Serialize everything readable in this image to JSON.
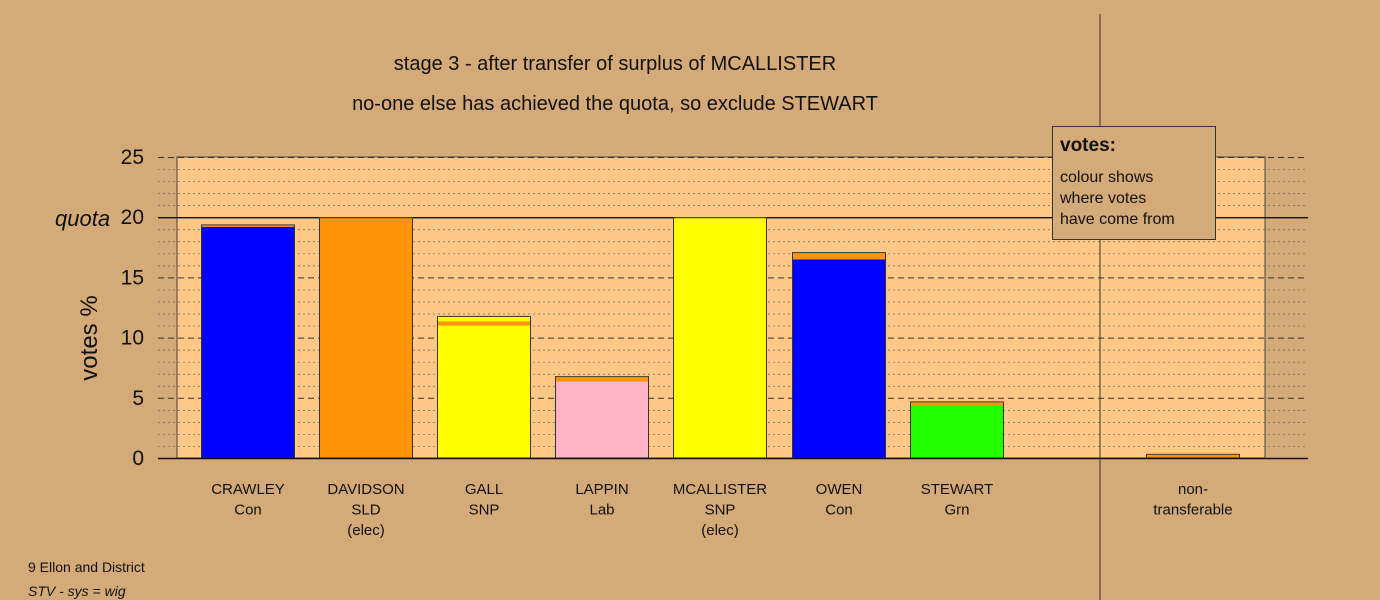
{
  "titles": {
    "line1": "stage 3 - after transfer of surplus of MCALLISTER",
    "line2": "no-one else has achieved the quota, so exclude STEWART"
  },
  "legend": {
    "title": "votes:",
    "lines": [
      "colour shows",
      "where votes",
      "have come from"
    ]
  },
  "footer": {
    "line1": "9 Ellon and District",
    "line2": "STV - sys = wig"
  },
  "colors": {
    "background": "#d4aa78",
    "plot_background": "#ffc887",
    "Con": "#0000ff",
    "SLD": "#ff9408",
    "SNP": "#ffff00",
    "Lab": "#ffb3c6",
    "Grn": "#22ff00"
  },
  "chart_data": {
    "type": "bar",
    "stacked": true,
    "ylabel": "votes %",
    "ylim": [
      0,
      25
    ],
    "yticks": [
      0,
      5,
      10,
      15,
      20,
      25
    ],
    "quota": 20,
    "quota_label": "quota",
    "grid": true,
    "legend_position": "top-right",
    "categories": [
      {
        "name": "CRAWLEY",
        "party": "Con",
        "note": ""
      },
      {
        "name": "DAVIDSON",
        "party": "SLD",
        "note": "(elec)"
      },
      {
        "name": "GALL",
        "party": "SNP",
        "note": ""
      },
      {
        "name": "LAPPIN",
        "party": "Lab",
        "note": ""
      },
      {
        "name": "MCALLISTER",
        "party": "SNP",
        "note": "(elec)"
      },
      {
        "name": "OWEN",
        "party": "Con",
        "note": ""
      },
      {
        "name": "STEWART",
        "party": "Grn",
        "note": ""
      },
      {
        "name": "",
        "party": "",
        "note": ""
      },
      {
        "name": "non-",
        "party": "transferable",
        "note": ""
      }
    ],
    "bars": [
      {
        "segments": [
          {
            "color": "#0000ff",
            "value": 19.2
          },
          {
            "color": "#ff9408",
            "value": 0.15
          },
          {
            "color": "#ffff00",
            "value": 0.05
          }
        ]
      },
      {
        "segments": [
          {
            "color": "#ff9408",
            "value": 20.0
          }
        ]
      },
      {
        "segments": [
          {
            "color": "#ffff00",
            "value": 11.0
          },
          {
            "color": "#ff9408",
            "value": 0.35
          },
          {
            "color": "#ffff00",
            "value": 0.45
          }
        ]
      },
      {
        "segments": [
          {
            "color": "#ffb3c6",
            "value": 6.35
          },
          {
            "color": "#ff9408",
            "value": 0.4
          },
          {
            "color": "#ffff00",
            "value": 0.05
          }
        ]
      },
      {
        "segments": [
          {
            "color": "#ffff00",
            "value": 20.0
          }
        ]
      },
      {
        "segments": [
          {
            "color": "#0000ff",
            "value": 16.5
          },
          {
            "color": "#ff9408",
            "value": 0.55
          },
          {
            "color": "#ffff00",
            "value": 0.05
          }
        ]
      },
      {
        "segments": [
          {
            "color": "#22ff00",
            "value": 4.4
          },
          {
            "color": "#ff9408",
            "value": 0.25
          },
          {
            "color": "#ffff00",
            "value": 0.05
          }
        ]
      },
      {
        "segments": []
      },
      {
        "segments": [
          {
            "color": "#ff9408",
            "value": 0.3
          },
          {
            "color": "#ffff00",
            "value": 0.05
          }
        ]
      }
    ]
  }
}
